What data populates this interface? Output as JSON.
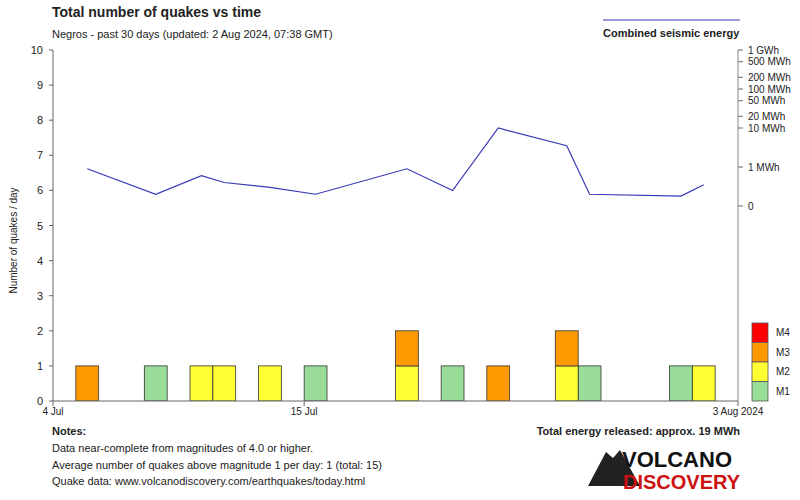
{
  "chart_data": {
    "type": "bar",
    "stacked": true,
    "title": "Total number of quakes vs time",
    "subtitle": "Negros - past 30 days (updated: 2 Aug 2024, 07:38 GMT)",
    "y_label": "Number of quakes / day",
    "x": [
      1.5,
      4.5,
      6.5,
      7.5,
      9.5,
      11.5,
      15.5,
      17.5,
      19.5,
      22.5,
      23.5,
      27.5,
      28.5
    ],
    "xlim": [
      0,
      30
    ],
    "xticks": [
      {
        "value": 0,
        "label": "4 Jul"
      },
      {
        "value": 11,
        "label": "15 Jul"
      },
      {
        "value": 30,
        "label": "3 Aug 2024"
      }
    ],
    "ylim": [
      0,
      10
    ],
    "yticks": [
      0,
      1,
      2,
      3,
      4,
      5,
      6,
      7,
      8,
      9,
      10
    ],
    "y2lim": [
      1e-06,
      1000
    ],
    "y2ticks": [
      {
        "value": 0.1,
        "label": "0"
      },
      {
        "value": 1,
        "label": "1 MWh"
      },
      {
        "value": 10,
        "label": "10 MWh"
      },
      {
        "value": 20,
        "label": "20 MWh"
      },
      {
        "value": 50,
        "label": "50 MWh"
      },
      {
        "value": 100,
        "label": "100 MWh"
      },
      {
        "value": 200,
        "label": "200 MWh"
      },
      {
        "value": 500,
        "label": "500 MWh"
      },
      {
        "value": 1000,
        "label": "1 GWh"
      }
    ],
    "legend": "right",
    "series": [
      {
        "name": "M1",
        "color": "#99dd99",
        "values": [
          0,
          1,
          0,
          0,
          0,
          1,
          0,
          1,
          0,
          0,
          1,
          1,
          0
        ]
      },
      {
        "name": "M2",
        "color": "#ffff33",
        "values": [
          0,
          0,
          1,
          1,
          1,
          0,
          1,
          0,
          0,
          1,
          0,
          0,
          1
        ]
      },
      {
        "name": "M3",
        "color": "#ff9900",
        "values": [
          1,
          0,
          0,
          0,
          0,
          0,
          1,
          0,
          1,
          1,
          0,
          0,
          0
        ]
      },
      {
        "name": "M4",
        "color": "#ff0000",
        "values": [
          0,
          0,
          0,
          0,
          0,
          0,
          0,
          0,
          0,
          0,
          0,
          0,
          0
        ]
      },
      {
        "name": "Combined seismic energy",
        "type": "line",
        "axis": "y2",
        "log": true,
        "color": "#3838b8",
        "values": [
          0.9,
          0.2,
          0.6,
          0.4,
          0.3,
          0.2,
          0.9,
          0.25,
          10,
          3.5,
          0.2,
          0.18,
          0.35
        ]
      }
    ],
    "notes_title": "Notes:",
    "notes": [
      "Data near-complete from magnitudes of 4.0 or higher.",
      "Average number of quakes above magnitude 1 per day: 1 (total: 15)",
      "Quake data: www.volcanodiscovery.com/earthquakes/today.html"
    ],
    "annotations": [
      "Total energy released: approx. 19 MWh"
    ],
    "logo": [
      "VOLCANO",
      "DISCOVERY"
    ]
  }
}
